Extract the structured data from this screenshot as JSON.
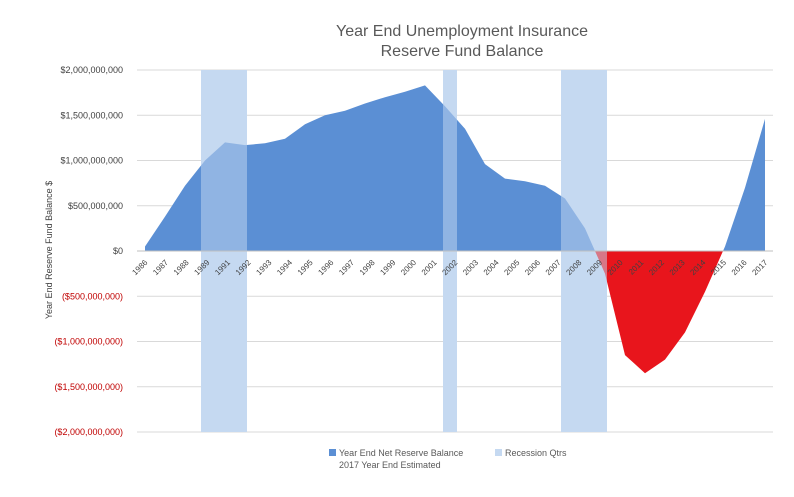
{
  "chart_data": {
    "type": "area",
    "title_line1": "Year End Unemployment Insurance",
    "title_line2": "Reserve Fund Balance",
    "ylabel": "Year End Reserve Fund Balance $",
    "xlabel": "",
    "ylim": [
      -2000000000,
      2000000000
    ],
    "yticks": [
      {
        "value": 2000000000,
        "label": "$2,000,000,000"
      },
      {
        "value": 1500000000,
        "label": "$1,500,000,000"
      },
      {
        "value": 1000000000,
        "label": "$1,000,000,000"
      },
      {
        "value": 500000000,
        "label": "$500,000,000"
      },
      {
        "value": 0,
        "label": "$0"
      },
      {
        "value": -500000000,
        "label": "($500,000,000)"
      },
      {
        "value": -1000000000,
        "label": "($1,000,000,000)"
      },
      {
        "value": -1500000000,
        "label": "($1,500,000,000)"
      },
      {
        "value": -2000000000,
        "label": "($2,000,000,000)"
      }
    ],
    "x": [
      "1986",
      "1987",
      "1988",
      "1989",
      "1990",
      "1991",
      "1992",
      "1993",
      "1994",
      "1995",
      "1996",
      "1997",
      "1998",
      "1999",
      "2000",
      "2001",
      "2002",
      "2003",
      "2004",
      "2005",
      "2006",
      "2007",
      "2008",
      "2009",
      "2010",
      "2011",
      "2012",
      "2013",
      "2014",
      "2015",
      "2016",
      "2017"
    ],
    "x_tick_labels": [
      "1986",
      "1987",
      "1988",
      "1989",
      "1991",
      "1992",
      "1993",
      "1994",
      "1995",
      "1996",
      "1997",
      "1998",
      "1999",
      "2000",
      "2001",
      "2002",
      "2003",
      "2004",
      "2005",
      "2006",
      "2007",
      "2008",
      "2009",
      "2010",
      "2011",
      "2012",
      "2013",
      "2014",
      "2015",
      "2016",
      "2017"
    ],
    "values": [
      50000000,
      380000000,
      720000000,
      1000000000,
      1200000000,
      1170000000,
      1190000000,
      1240000000,
      1400000000,
      1500000000,
      1550000000,
      1630000000,
      1700000000,
      1760000000,
      1830000000,
      1600000000,
      1350000000,
      960000000,
      800000000,
      770000000,
      720000000,
      580000000,
      250000000,
      -250000000,
      -1150000000,
      -1350000000,
      -1200000000,
      -900000000,
      -450000000,
      50000000,
      700000000,
      1460000000
    ],
    "recessions": [
      {
        "start": 1988.8,
        "end": 1991.1
      },
      {
        "start": 2000.9,
        "end": 2001.6
      },
      {
        "start": 2006.8,
        "end": 2009.1
      }
    ],
    "colors": {
      "positive": "#5b8fd4",
      "negative": "#e8151c",
      "recession": "#c5d9f1",
      "grid": "#d9d9d9",
      "negative_label": "#c00000"
    },
    "legend": {
      "position": "bottom",
      "items": [
        {
          "name": "Year End Net Reserve Balance",
          "color": "#5b8fd4"
        },
        {
          "name": "Recession Qtrs",
          "color": "#c5d9f1"
        }
      ],
      "note": "2017 Year End Estimated"
    },
    "grid": true
  }
}
